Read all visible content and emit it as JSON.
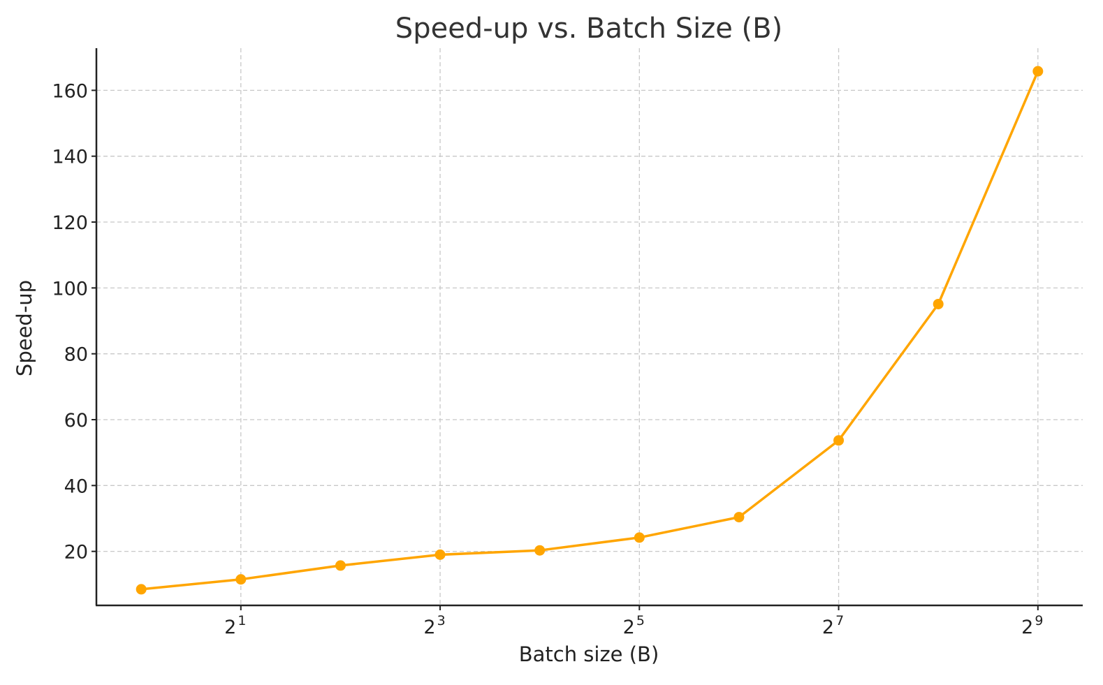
{
  "chart_data": {
    "type": "line",
    "title": "Speed-up vs. Batch Size (B)",
    "xlabel": "Batch size (B)",
    "ylabel": "Speed-up",
    "x_scale": "log2",
    "x": [
      1,
      2,
      4,
      8,
      16,
      32,
      64,
      128,
      256,
      512
    ],
    "y": [
      8.5,
      11.5,
      15.7,
      19.0,
      20.3,
      24.2,
      30.4,
      53.7,
      95.1,
      165.8
    ],
    "x_ticks": [
      {
        "base": "2",
        "exp": "1"
      },
      {
        "base": "2",
        "exp": "3"
      },
      {
        "base": "2",
        "exp": "5"
      },
      {
        "base": "2",
        "exp": "7"
      },
      {
        "base": "2",
        "exp": "9"
      }
    ],
    "y_ticks": [
      "20",
      "40",
      "60",
      "80",
      "100",
      "120",
      "140",
      "160"
    ],
    "ylim": [
      3.6,
      172.8
    ],
    "xlim_log2": [
      -0.45,
      9.45
    ],
    "grid": true,
    "series_color": "#FFA500"
  }
}
